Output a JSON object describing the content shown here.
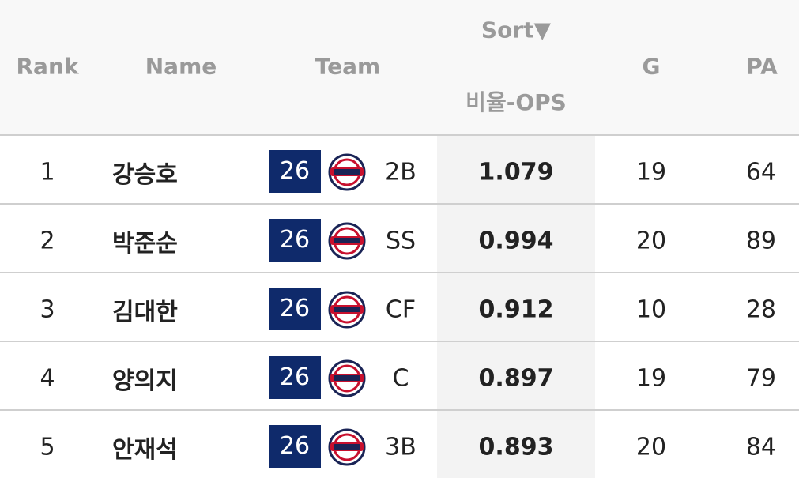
{
  "header": {
    "rank": "Rank",
    "name": "Name",
    "team": "Team",
    "sort": "Sort▼",
    "ops": "비율-OPS",
    "g": "G",
    "pa": "PA"
  },
  "rows": [
    {
      "rank": "1",
      "name": "강승호",
      "team": "26",
      "position": "2B",
      "ops": "1.079",
      "g": "19",
      "pa": "64"
    },
    {
      "rank": "2",
      "name": "박준순",
      "team": "26",
      "position": "SS",
      "ops": "0.994",
      "g": "20",
      "pa": "89"
    },
    {
      "rank": "3",
      "name": "김대한",
      "team": "26",
      "position": "CF",
      "ops": "0.912",
      "g": "10",
      "pa": "28"
    },
    {
      "rank": "4",
      "name": "양의지",
      "team": "26",
      "position": "C",
      "ops": "0.897",
      "g": "19",
      "pa": "79"
    },
    {
      "rank": "5",
      "name": "안재석",
      "team": "26",
      "position": "3B",
      "ops": "0.893",
      "g": "20",
      "pa": "84"
    }
  ]
}
